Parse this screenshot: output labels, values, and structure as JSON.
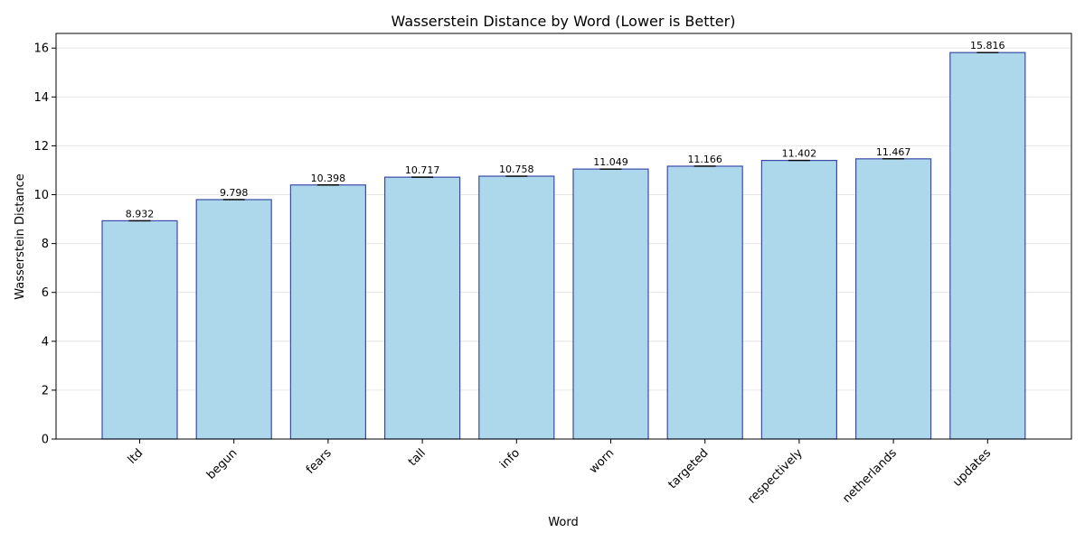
{
  "chart_data": {
    "type": "bar",
    "title": "Wasserstein Distance by Word (Lower is Better)",
    "xlabel": "Word",
    "ylabel": "Wasserstein Distance",
    "categories": [
      "ltd",
      "begun",
      "fears",
      "tall",
      "info",
      "worn",
      "targeted",
      "respectively",
      "netherlands",
      "updates"
    ],
    "values": [
      8.932,
      9.798,
      10.398,
      10.717,
      10.758,
      11.049,
      11.166,
      11.402,
      11.467,
      15.816
    ],
    "data_labels": [
      "8.932",
      "9.798",
      "10.398",
      "10.717",
      "10.758",
      "11.049",
      "11.166",
      "11.402",
      "11.467",
      "15.816"
    ],
    "ylim": [
      0,
      16.6
    ],
    "yticks": [
      0,
      2,
      4,
      6,
      8,
      10,
      12,
      14,
      16
    ],
    "ytick_labels": [
      "0",
      "2",
      "4",
      "6",
      "8",
      "10",
      "12",
      "14",
      "16"
    ],
    "grid": true,
    "colors": {
      "bar_fill": "#add8ec",
      "bar_edge": "#3a4aa8"
    }
  }
}
